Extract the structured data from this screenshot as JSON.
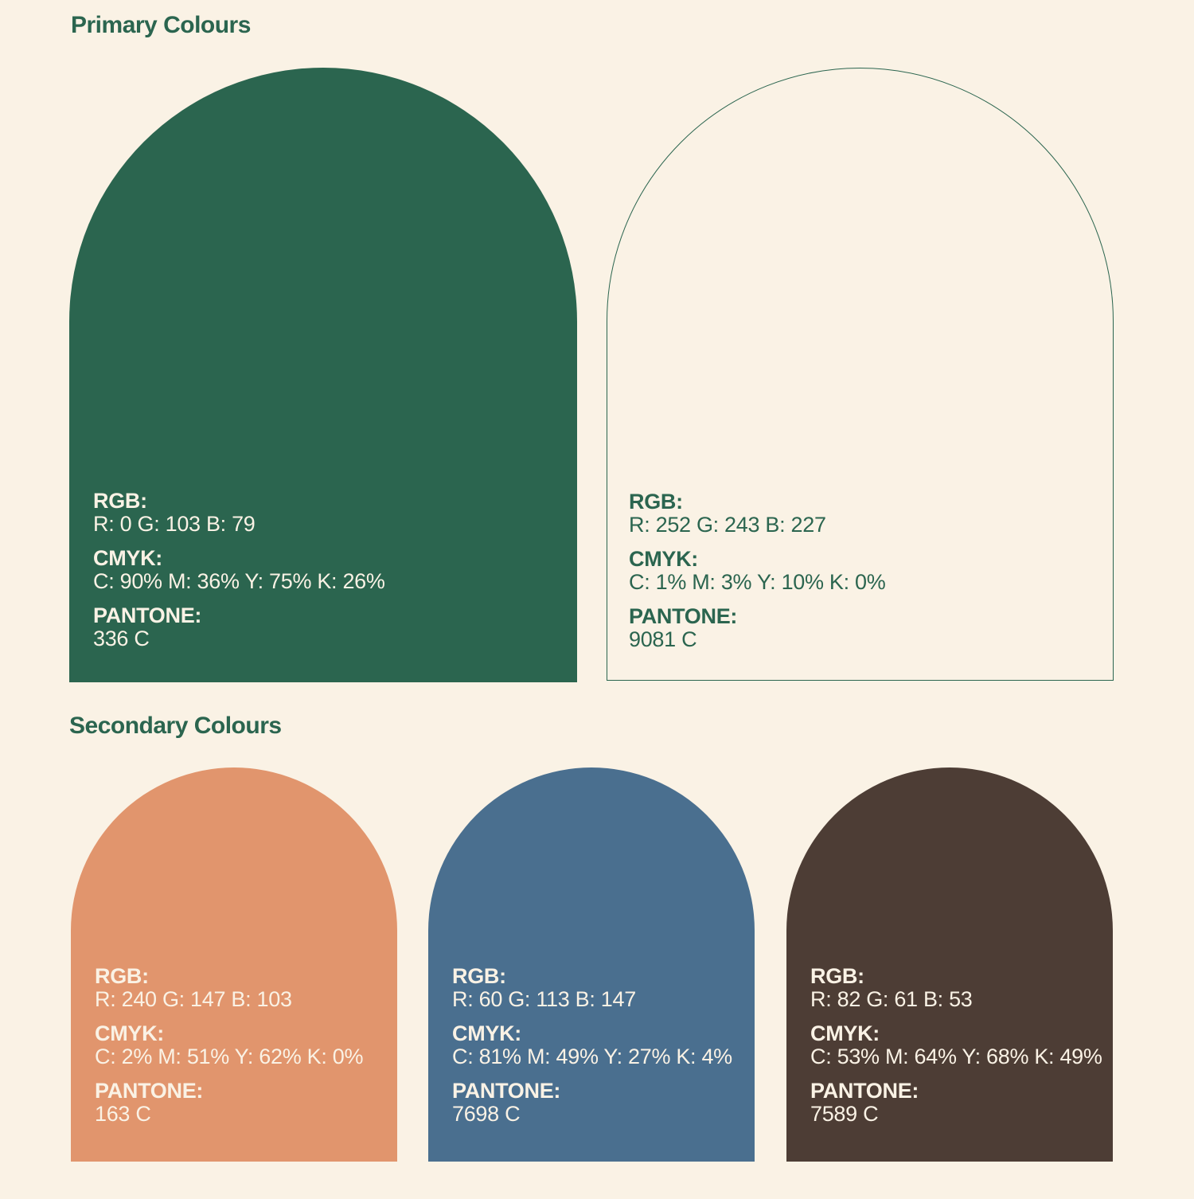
{
  "primary": {
    "title": "Primary Colours",
    "swatches": [
      {
        "name": "green",
        "fill": "#2B654F",
        "text_color": "#FAF2E5",
        "rgb_label": "RGB:",
        "rgb_value": "R: 0 G: 103 B: 79",
        "cmyk_label": "CMYK:",
        "cmyk_value": "C: 90% M: 36% Y: 75% K: 26%",
        "pantone_label": "PANTONE:",
        "pantone_value": "336 C"
      },
      {
        "name": "cream",
        "fill": "#FAF2E5",
        "outline": "#2B654F",
        "text_color": "#2B654F",
        "rgb_label": "RGB:",
        "rgb_value": "R: 252 G: 243 B: 227",
        "cmyk_label": "CMYK:",
        "cmyk_value": "C: 1% M: 3% Y: 10% K: 0%",
        "pantone_label": "PANTONE:",
        "pantone_value": "9081 C"
      }
    ]
  },
  "secondary": {
    "title": "Secondary Colours",
    "swatches": [
      {
        "name": "orange",
        "fill": "#E1956D",
        "text_color": "#FAF2E5",
        "rgb_label": "RGB:",
        "rgb_value": "R: 240 G: 147 B: 103",
        "cmyk_label": "CMYK:",
        "cmyk_value": "C: 2% M: 51% Y: 62% K: 0%",
        "pantone_label": "PANTONE:",
        "pantone_value": "163 C"
      },
      {
        "name": "blue",
        "fill": "#4A6F8F",
        "text_color": "#FAF2E5",
        "rgb_label": "RGB:",
        "rgb_value": "R: 60 G: 113 B: 147",
        "cmyk_label": "CMYK:",
        "cmyk_value": "C: 81% M: 49% Y: 27% K: 4%",
        "pantone_label": "PANTONE:",
        "pantone_value": "7698 C"
      },
      {
        "name": "brown",
        "fill": "#4D3D35",
        "text_color": "#FAF2E5",
        "rgb_label": "RGB:",
        "rgb_value": "R: 82 G: 61 B: 53",
        "cmyk_label": "CMYK:",
        "cmyk_value": "C: 53% M: 64% Y: 68% K: 49%",
        "pantone_label": "PANTONE:",
        "pantone_value": "7589 C"
      }
    ]
  }
}
